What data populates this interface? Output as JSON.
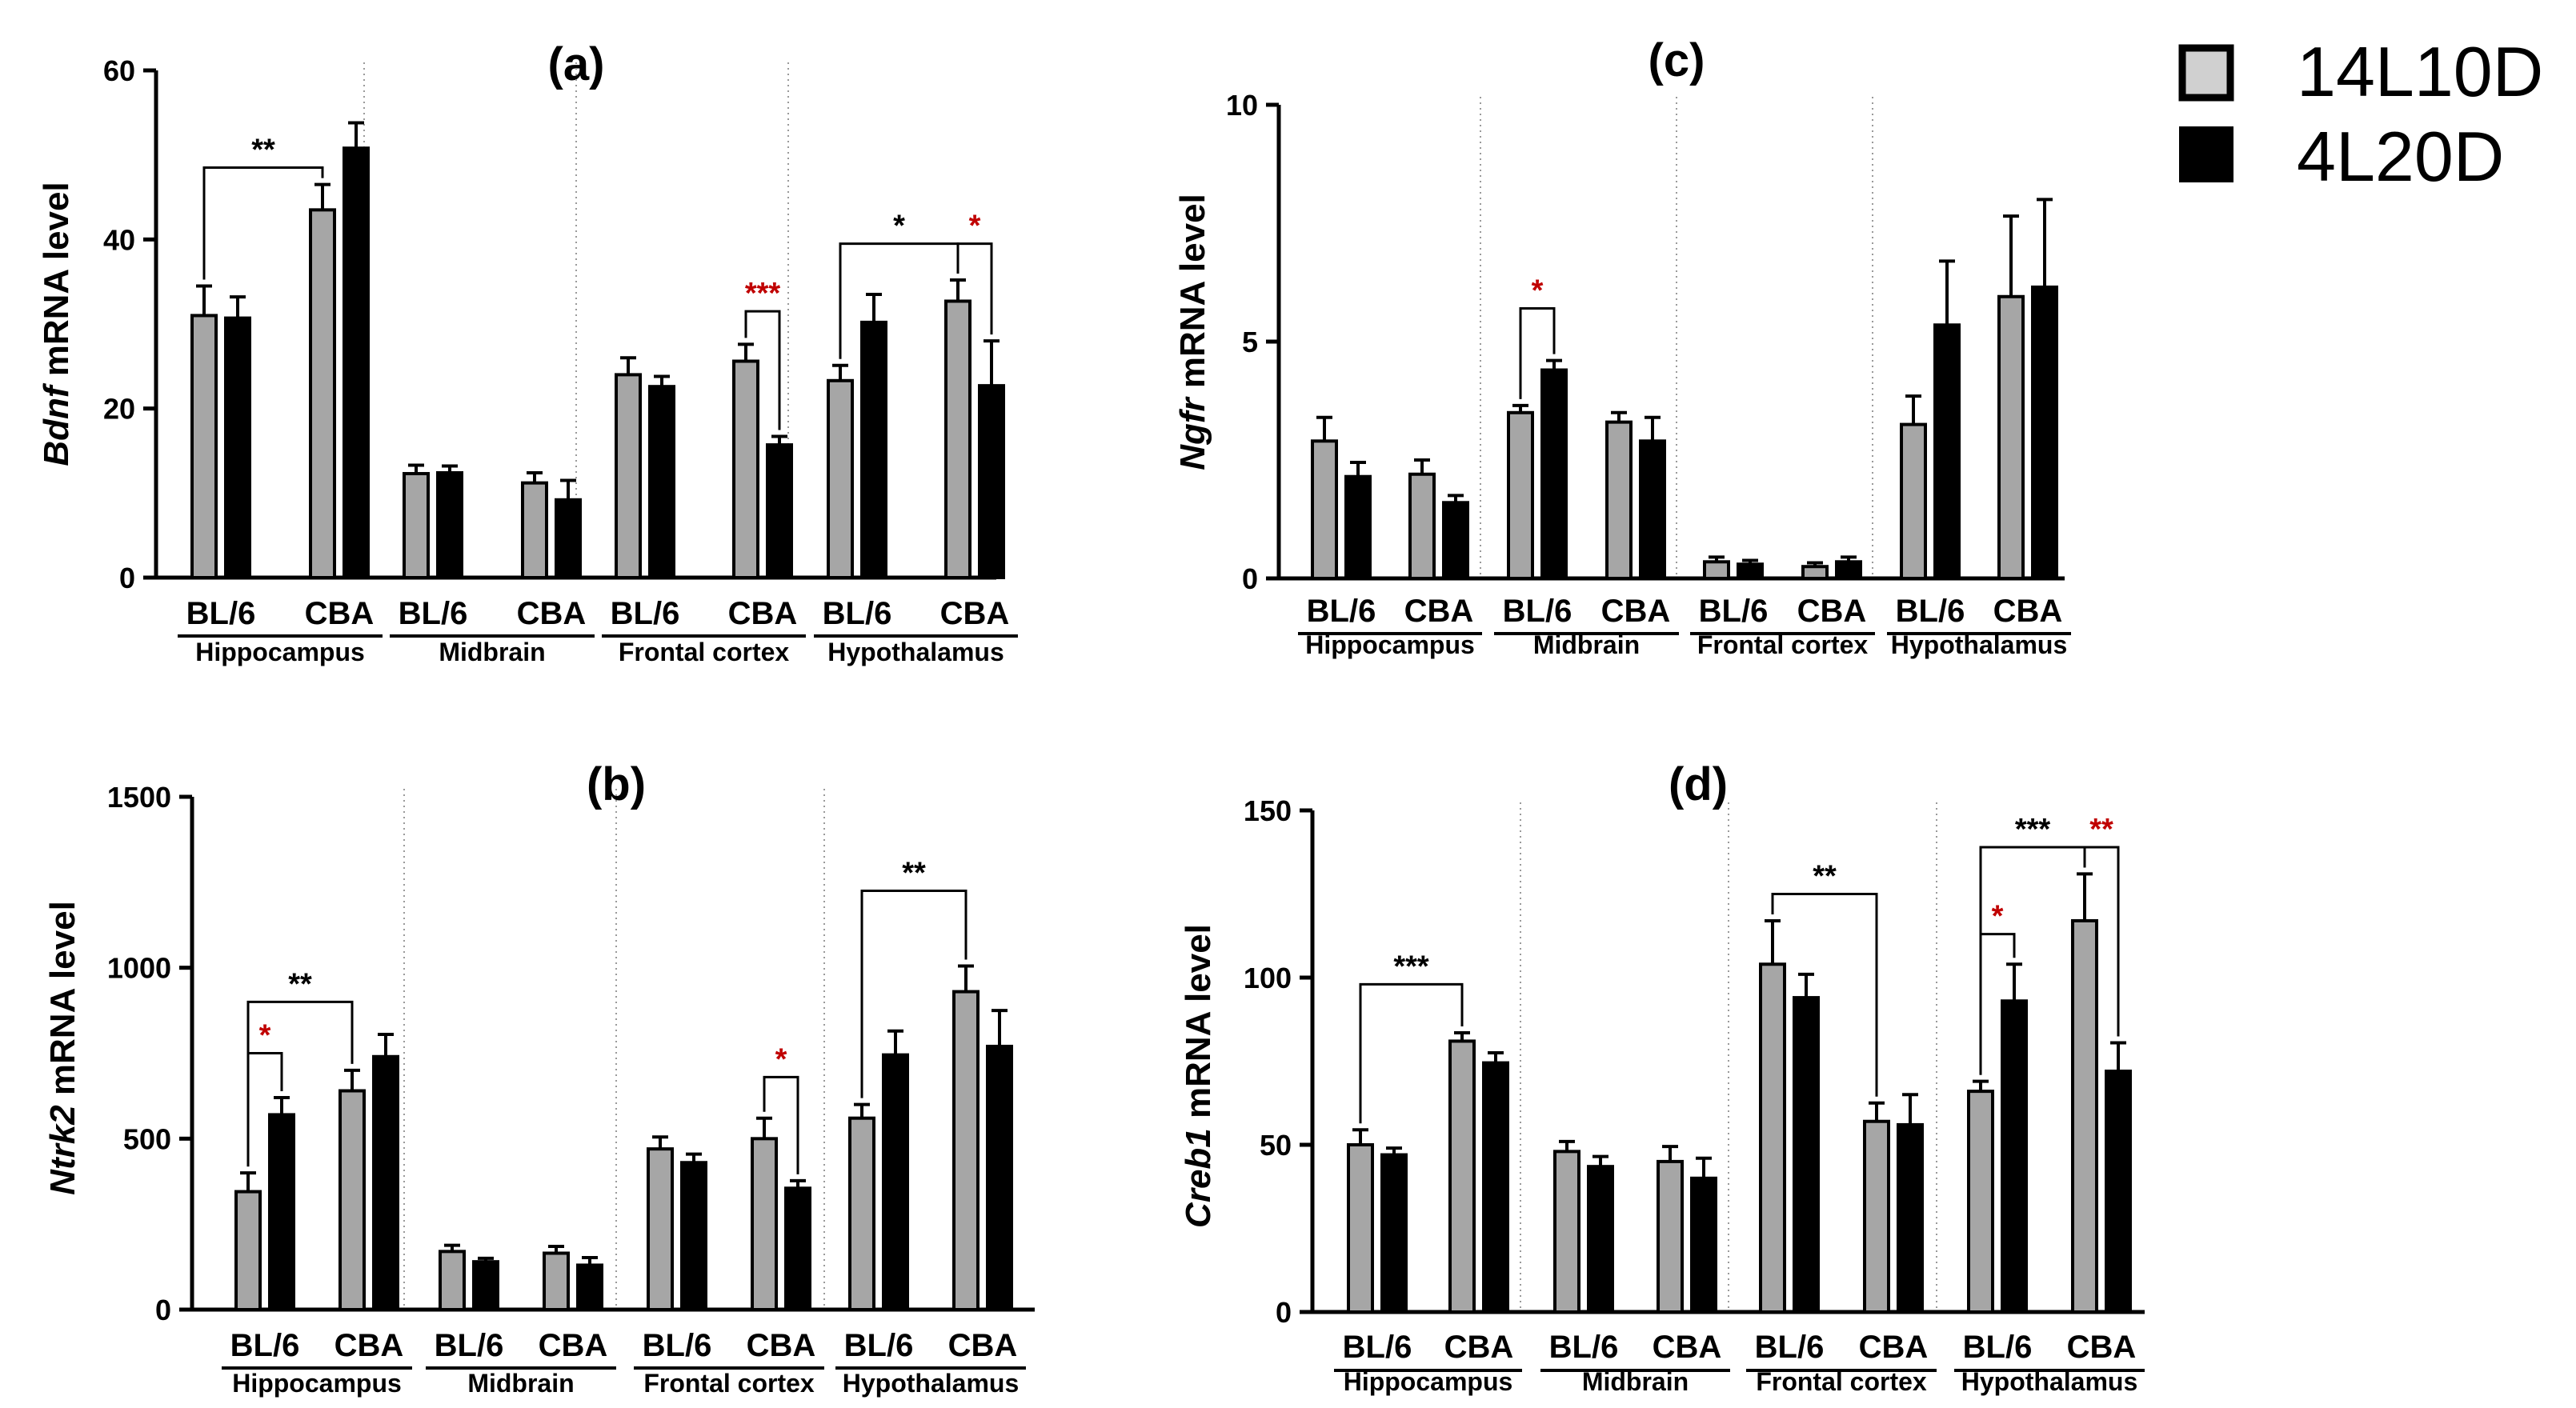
{
  "legend": {
    "placement": "top-right",
    "entries": [
      {
        "label": "14L10D",
        "color": "#a6a6a6"
      },
      {
        "label": "4L20D",
        "color": "#000000"
      }
    ]
  },
  "colors": {
    "grey_bar": "#a6a6a6",
    "black_bar": "#000000",
    "significance_red": "#c00000",
    "significance_black": "#000000",
    "separator": "#9a9a9a"
  },
  "strains": [
    "BL/6",
    "CBA"
  ],
  "regions": [
    "Hippocampus",
    "Midbrain",
    "Frontal cortex",
    "Hypothalamus"
  ],
  "chart_data": [
    {
      "panel": "(a)",
      "type": "bar",
      "title": "(a)",
      "gene": "Bdnf",
      "ylabel_rest": " mRNA level",
      "ylim": [
        0,
        60
      ],
      "yticks": [
        "0",
        "20",
        "40",
        "60"
      ],
      "ytick_values": [
        0,
        20,
        40,
        60
      ],
      "series": [
        {
          "name": "14L10D",
          "values": [
            31,
            43.5,
            12.3,
            11.2,
            24,
            25.6,
            23.3,
            32.7
          ],
          "errors": [
            3.5,
            3.0,
            1.0,
            1.2,
            2.0,
            2.0,
            1.8,
            2.5
          ]
        },
        {
          "name": "4L20D",
          "values": [
            30.7,
            50.8,
            12.4,
            9.2,
            22.6,
            15.7,
            30.2,
            22.7
          ],
          "errors": [
            2.5,
            3.0,
            0.8,
            2.3,
            1.2,
            1.0,
            3.3,
            5.3
          ]
        }
      ],
      "significance": [
        {
          "label": "**",
          "color": "black",
          "from": [
            0,
            0
          ],
          "to": [
            1,
            0
          ],
          "y": 48.5,
          "direction": "up"
        },
        {
          "label": "***",
          "color": "red",
          "from": [
            5,
            0
          ],
          "to": [
            5,
            1
          ],
          "y": 31.5,
          "direction": "down"
        },
        {
          "label": "*",
          "color": "black",
          "from": [
            6,
            0
          ],
          "to": [
            7,
            0
          ],
          "y": 39.5,
          "direction": "up"
        },
        {
          "label": "*",
          "color": "red",
          "from": [
            7,
            0
          ],
          "to": [
            7,
            1
          ],
          "y": 39.5,
          "direction": "down"
        }
      ]
    },
    {
      "panel": "(b)",
      "type": "bar",
      "title": "(b)",
      "gene": "Ntrk2",
      "ylabel_rest": " mRNA level",
      "ylim": [
        0,
        1500
      ],
      "yticks": [
        "0",
        "500",
        "1000",
        "1500"
      ],
      "ytick_values": [
        0,
        500,
        1000,
        1500
      ],
      "series": [
        {
          "name": "14L10D",
          "values": [
            345,
            640,
            170,
            165,
            470,
            500,
            560,
            930
          ],
          "errors": [
            55,
            60,
            18,
            20,
            35,
            60,
            40,
            75
          ]
        },
        {
          "name": "4L20D",
          "values": [
            570,
            740,
            140,
            130,
            430,
            355,
            745,
            770
          ],
          "errors": [
            50,
            65,
            10,
            22,
            25,
            22,
            70,
            105
          ]
        }
      ],
      "significance": [
        {
          "label": "**",
          "color": "black",
          "from": [
            0,
            0
          ],
          "to": [
            1,
            0
          ],
          "y": 900,
          "direction": "up"
        },
        {
          "label": "*",
          "color": "red",
          "from": [
            0,
            0
          ],
          "to": [
            0,
            1
          ],
          "y": 750,
          "direction": "down"
        },
        {
          "label": "*",
          "color": "red",
          "from": [
            5,
            0
          ],
          "to": [
            5,
            1
          ],
          "y": 680,
          "direction": "down"
        },
        {
          "label": "**",
          "color": "black",
          "from": [
            6,
            0
          ],
          "to": [
            7,
            0
          ],
          "y": 1225,
          "direction": "up"
        }
      ]
    },
    {
      "panel": "(c)",
      "type": "bar",
      "title": "(c)",
      "gene": "Ngfr",
      "ylabel_rest": " mRNA level",
      "ylim": [
        0,
        10
      ],
      "yticks": [
        "0",
        "5",
        "10"
      ],
      "ytick_values": [
        0,
        5,
        10
      ],
      "series": [
        {
          "name": "14L10D",
          "values": [
            2.9,
            2.2,
            3.5,
            3.3,
            0.35,
            0.25,
            3.25,
            5.95
          ],
          "errors": [
            0.5,
            0.3,
            0.15,
            0.2,
            0.1,
            0.08,
            0.6,
            1.7
          ]
        },
        {
          "name": "4L20D",
          "values": [
            2.15,
            1.6,
            4.4,
            2.9,
            0.3,
            0.35,
            5.35,
            6.15
          ],
          "errors": [
            0.3,
            0.15,
            0.2,
            0.5,
            0.08,
            0.1,
            1.35,
            1.85
          ]
        }
      ],
      "significance": [
        {
          "label": "*",
          "color": "red",
          "from": [
            2,
            0
          ],
          "to": [
            2,
            1
          ],
          "y": 5.7,
          "direction": "down"
        }
      ]
    },
    {
      "panel": "(d)",
      "type": "bar",
      "title": "(d)",
      "gene": "Creb1",
      "ylabel_rest": " mRNA level",
      "ylim": [
        0,
        150
      ],
      "yticks": [
        "0",
        "50",
        "100",
        "150"
      ],
      "ytick_values": [
        0,
        50,
        100,
        150
      ],
      "series": [
        {
          "name": "14L10D",
          "values": [
            50,
            81,
            48,
            45,
            104,
            57,
            66,
            117
          ],
          "errors": [
            4.5,
            2.5,
            3,
            4.5,
            13,
            5.5,
            3,
            14
          ]
        },
        {
          "name": "4L20D",
          "values": [
            47,
            74.5,
            43.5,
            40,
            94,
            56,
            93,
            72
          ],
          "errors": [
            2,
            3,
            3,
            6,
            7,
            9,
            11,
            8.5
          ]
        }
      ],
      "significance": [
        {
          "label": "***",
          "color": "black",
          "from": [
            0,
            0
          ],
          "to": [
            1,
            0
          ],
          "y": 98,
          "direction": "up"
        },
        {
          "label": "**",
          "color": "black",
          "from": [
            4,
            0
          ],
          "to": [
            5,
            0
          ],
          "y": 125,
          "direction": "up"
        },
        {
          "label": "*",
          "color": "red",
          "from": [
            6,
            0
          ],
          "to": [
            6,
            1
          ],
          "y": 113,
          "direction": "down"
        },
        {
          "label": "***",
          "color": "black",
          "from": [
            6,
            0
          ],
          "to": [
            7,
            0
          ],
          "y": 139,
          "direction": "up"
        },
        {
          "label": "**",
          "color": "red",
          "from": [
            7,
            0
          ],
          "to": [
            7,
            1
          ],
          "y": 139,
          "direction": "down"
        }
      ]
    }
  ]
}
